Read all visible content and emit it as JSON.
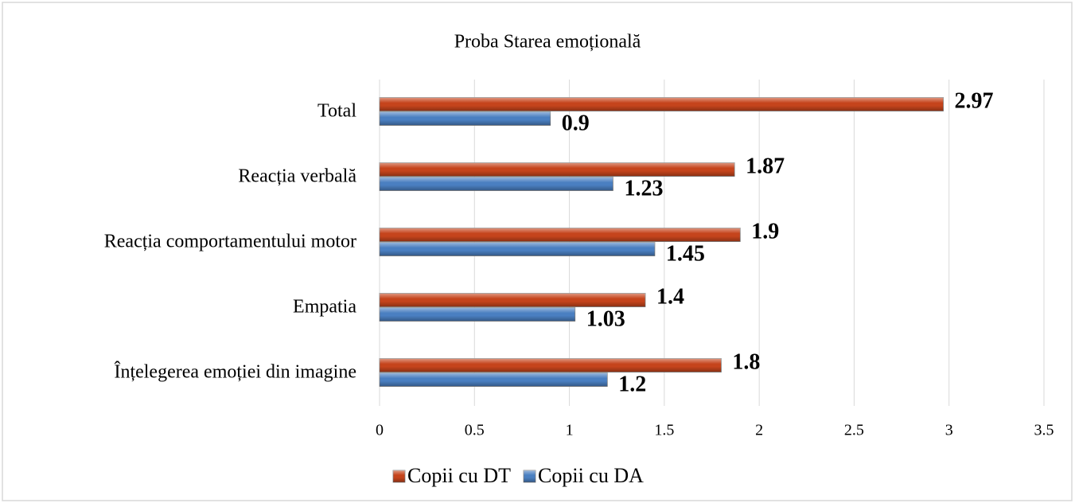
{
  "chart_data": {
    "type": "hbar",
    "title": "Proba Starea emoțională",
    "categories": [
      "Total",
      "Reacția verbală",
      "Reacția comportamentului motor",
      "Empatia",
      "Înțelegerea emoției din imagine"
    ],
    "series": [
      {
        "name": "Copii cu DT",
        "color": "#c5441c",
        "values": [
          2.97,
          1.87,
          1.9,
          1.4,
          1.8
        ]
      },
      {
        "name": "Copii cu DA",
        "color": "#4a7fc1",
        "values": [
          0.9,
          1.23,
          1.45,
          1.03,
          1.2
        ]
      }
    ],
    "xlim": [
      0,
      3.5
    ],
    "xticks": [
      0,
      0.5,
      1,
      1.5,
      2,
      2.5,
      3,
      3.5
    ],
    "grid": true,
    "legend": "bottom"
  }
}
